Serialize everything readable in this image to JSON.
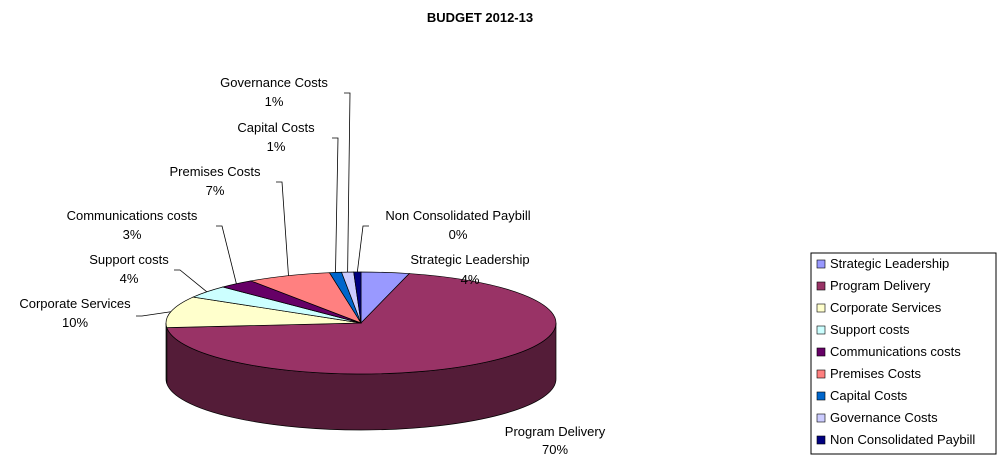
{
  "chart_data": {
    "type": "pie",
    "title": "BUDGET 2012-13",
    "three_d": true,
    "legend_position": "right",
    "slices": [
      {
        "name": "Strategic Leadership",
        "value": 4,
        "label": "4%",
        "color": "#9999ff"
      },
      {
        "name": "Program Delivery",
        "value": 70,
        "label": "70%",
        "color": "#993366"
      },
      {
        "name": "Corporate Services",
        "value": 10,
        "label": "10%",
        "color": "#ffffcc"
      },
      {
        "name": "Support costs",
        "value": 4,
        "label": "4%",
        "color": "#ccffff"
      },
      {
        "name": "Communications costs",
        "value": 3,
        "label": "3%",
        "color": "#660066"
      },
      {
        "name": "Premises Costs",
        "value": 7,
        "label": "7%",
        "color": "#ff8080"
      },
      {
        "name": "Capital Costs",
        "value": 1,
        "label": "1%",
        "color": "#0066cc"
      },
      {
        "name": "Governance Costs",
        "value": 1,
        "label": "1%",
        "color": "#ccccff"
      },
      {
        "name": "Non Consolidated Paybill",
        "value": 0,
        "label": "0%",
        "color": "#000080"
      }
    ]
  }
}
